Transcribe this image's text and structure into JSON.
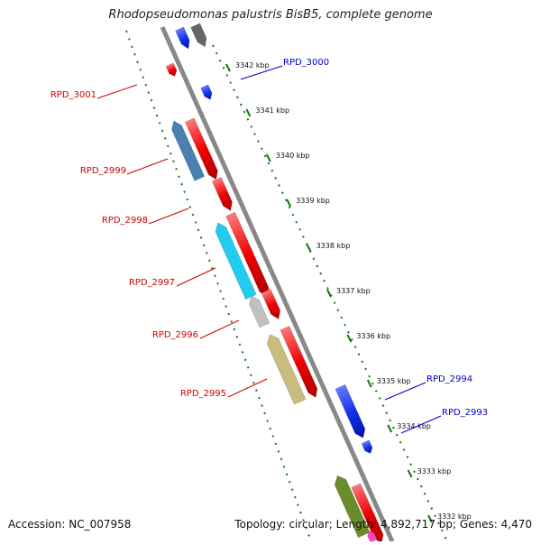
{
  "title": "Rhodopseudomonas palustris BisB5, complete genome",
  "accession": "Accession: NC_007958",
  "topology": "Topology: circular; Length: 4,892,717 bp; Genes: 4,470",
  "scale_ticks": [
    "3342 kbp",
    "3341 kbp",
    "3340 kbp",
    "3339 kbp",
    "3338 kbp",
    "3337 kbp",
    "3336 kbp",
    "3335 kbp",
    "3334 kbp",
    "3333 kbp",
    "3332 kbp"
  ],
  "gene_labels_forward": [
    "RPD_3000",
    "RPD_2994",
    "RPD_2993"
  ],
  "gene_labels_reverse": [
    "RPD_3001",
    "RPD_2999",
    "RPD_2998",
    "RPD_2997",
    "RPD_2996",
    "RPD_2995"
  ],
  "colors": {
    "backbone": "#888888",
    "forward_label": "#0000cc",
    "reverse_label": "#cc0000",
    "tick_green": "#117711",
    "gene_red": "#ee0000",
    "gene_blue": "#1133ee"
  }
}
